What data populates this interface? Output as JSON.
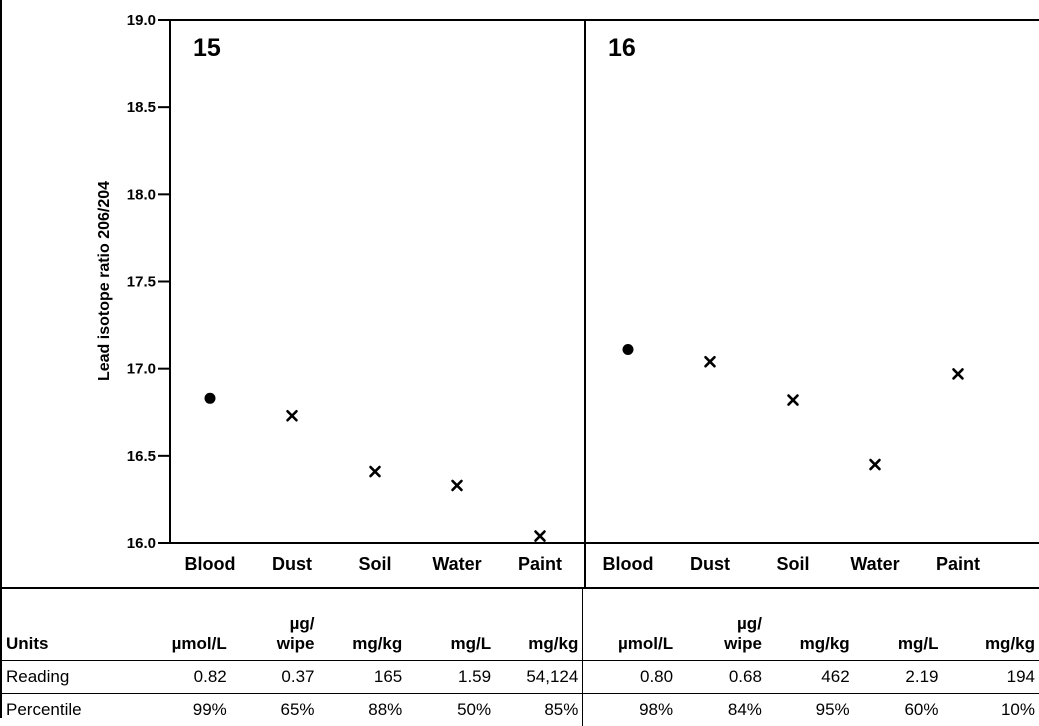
{
  "chart_data": {
    "type": "scatter",
    "ylabel": "Lead isotope ratio 206/204",
    "ylim": [
      16.0,
      19.0
    ],
    "yticks": [
      "16.0",
      "16.5",
      "17.0",
      "17.5",
      "18.0",
      "18.5",
      "19.0"
    ],
    "categories": [
      "Blood",
      "Dust",
      "Soil",
      "Water",
      "Paint"
    ],
    "panels": [
      {
        "label": "15",
        "points": [
          {
            "category": "Blood",
            "y": 16.83,
            "marker": "circle"
          },
          {
            "category": "Dust",
            "y": 16.73,
            "marker": "x"
          },
          {
            "category": "Soil",
            "y": 16.41,
            "marker": "x"
          },
          {
            "category": "Water",
            "y": 16.33,
            "marker": "x"
          },
          {
            "category": "Paint",
            "y": 16.04,
            "marker": "x"
          }
        ]
      },
      {
        "label": "16",
        "points": [
          {
            "category": "Blood",
            "y": 17.11,
            "marker": "circle"
          },
          {
            "category": "Dust",
            "y": 17.04,
            "marker": "x"
          },
          {
            "category": "Soil",
            "y": 16.82,
            "marker": "x"
          },
          {
            "category": "Water",
            "y": 16.45,
            "marker": "x"
          },
          {
            "category": "Paint",
            "y": 16.97,
            "marker": "x"
          }
        ]
      }
    ]
  },
  "table": {
    "rows": [
      {
        "label": "Units",
        "panel15": [
          "µmol/L",
          "µg/\nwipe",
          "mg/kg",
          "mg/L",
          "mg/kg"
        ],
        "panel16": [
          "µmol/L",
          "µg/\nwipe",
          "mg/kg",
          "mg/L",
          "mg/kg"
        ]
      },
      {
        "label": "Reading",
        "panel15": [
          "0.82",
          "0.37",
          "165",
          "1.59",
          "54,124"
        ],
        "panel16": [
          "0.80",
          "0.68",
          "462",
          "2.19",
          "194"
        ]
      },
      {
        "label": "Percentile",
        "panel15": [
          "99%",
          "65%",
          "88%",
          "50%",
          "85%"
        ],
        "panel16": [
          "98%",
          "84%",
          "95%",
          "60%",
          "10%"
        ]
      }
    ]
  }
}
